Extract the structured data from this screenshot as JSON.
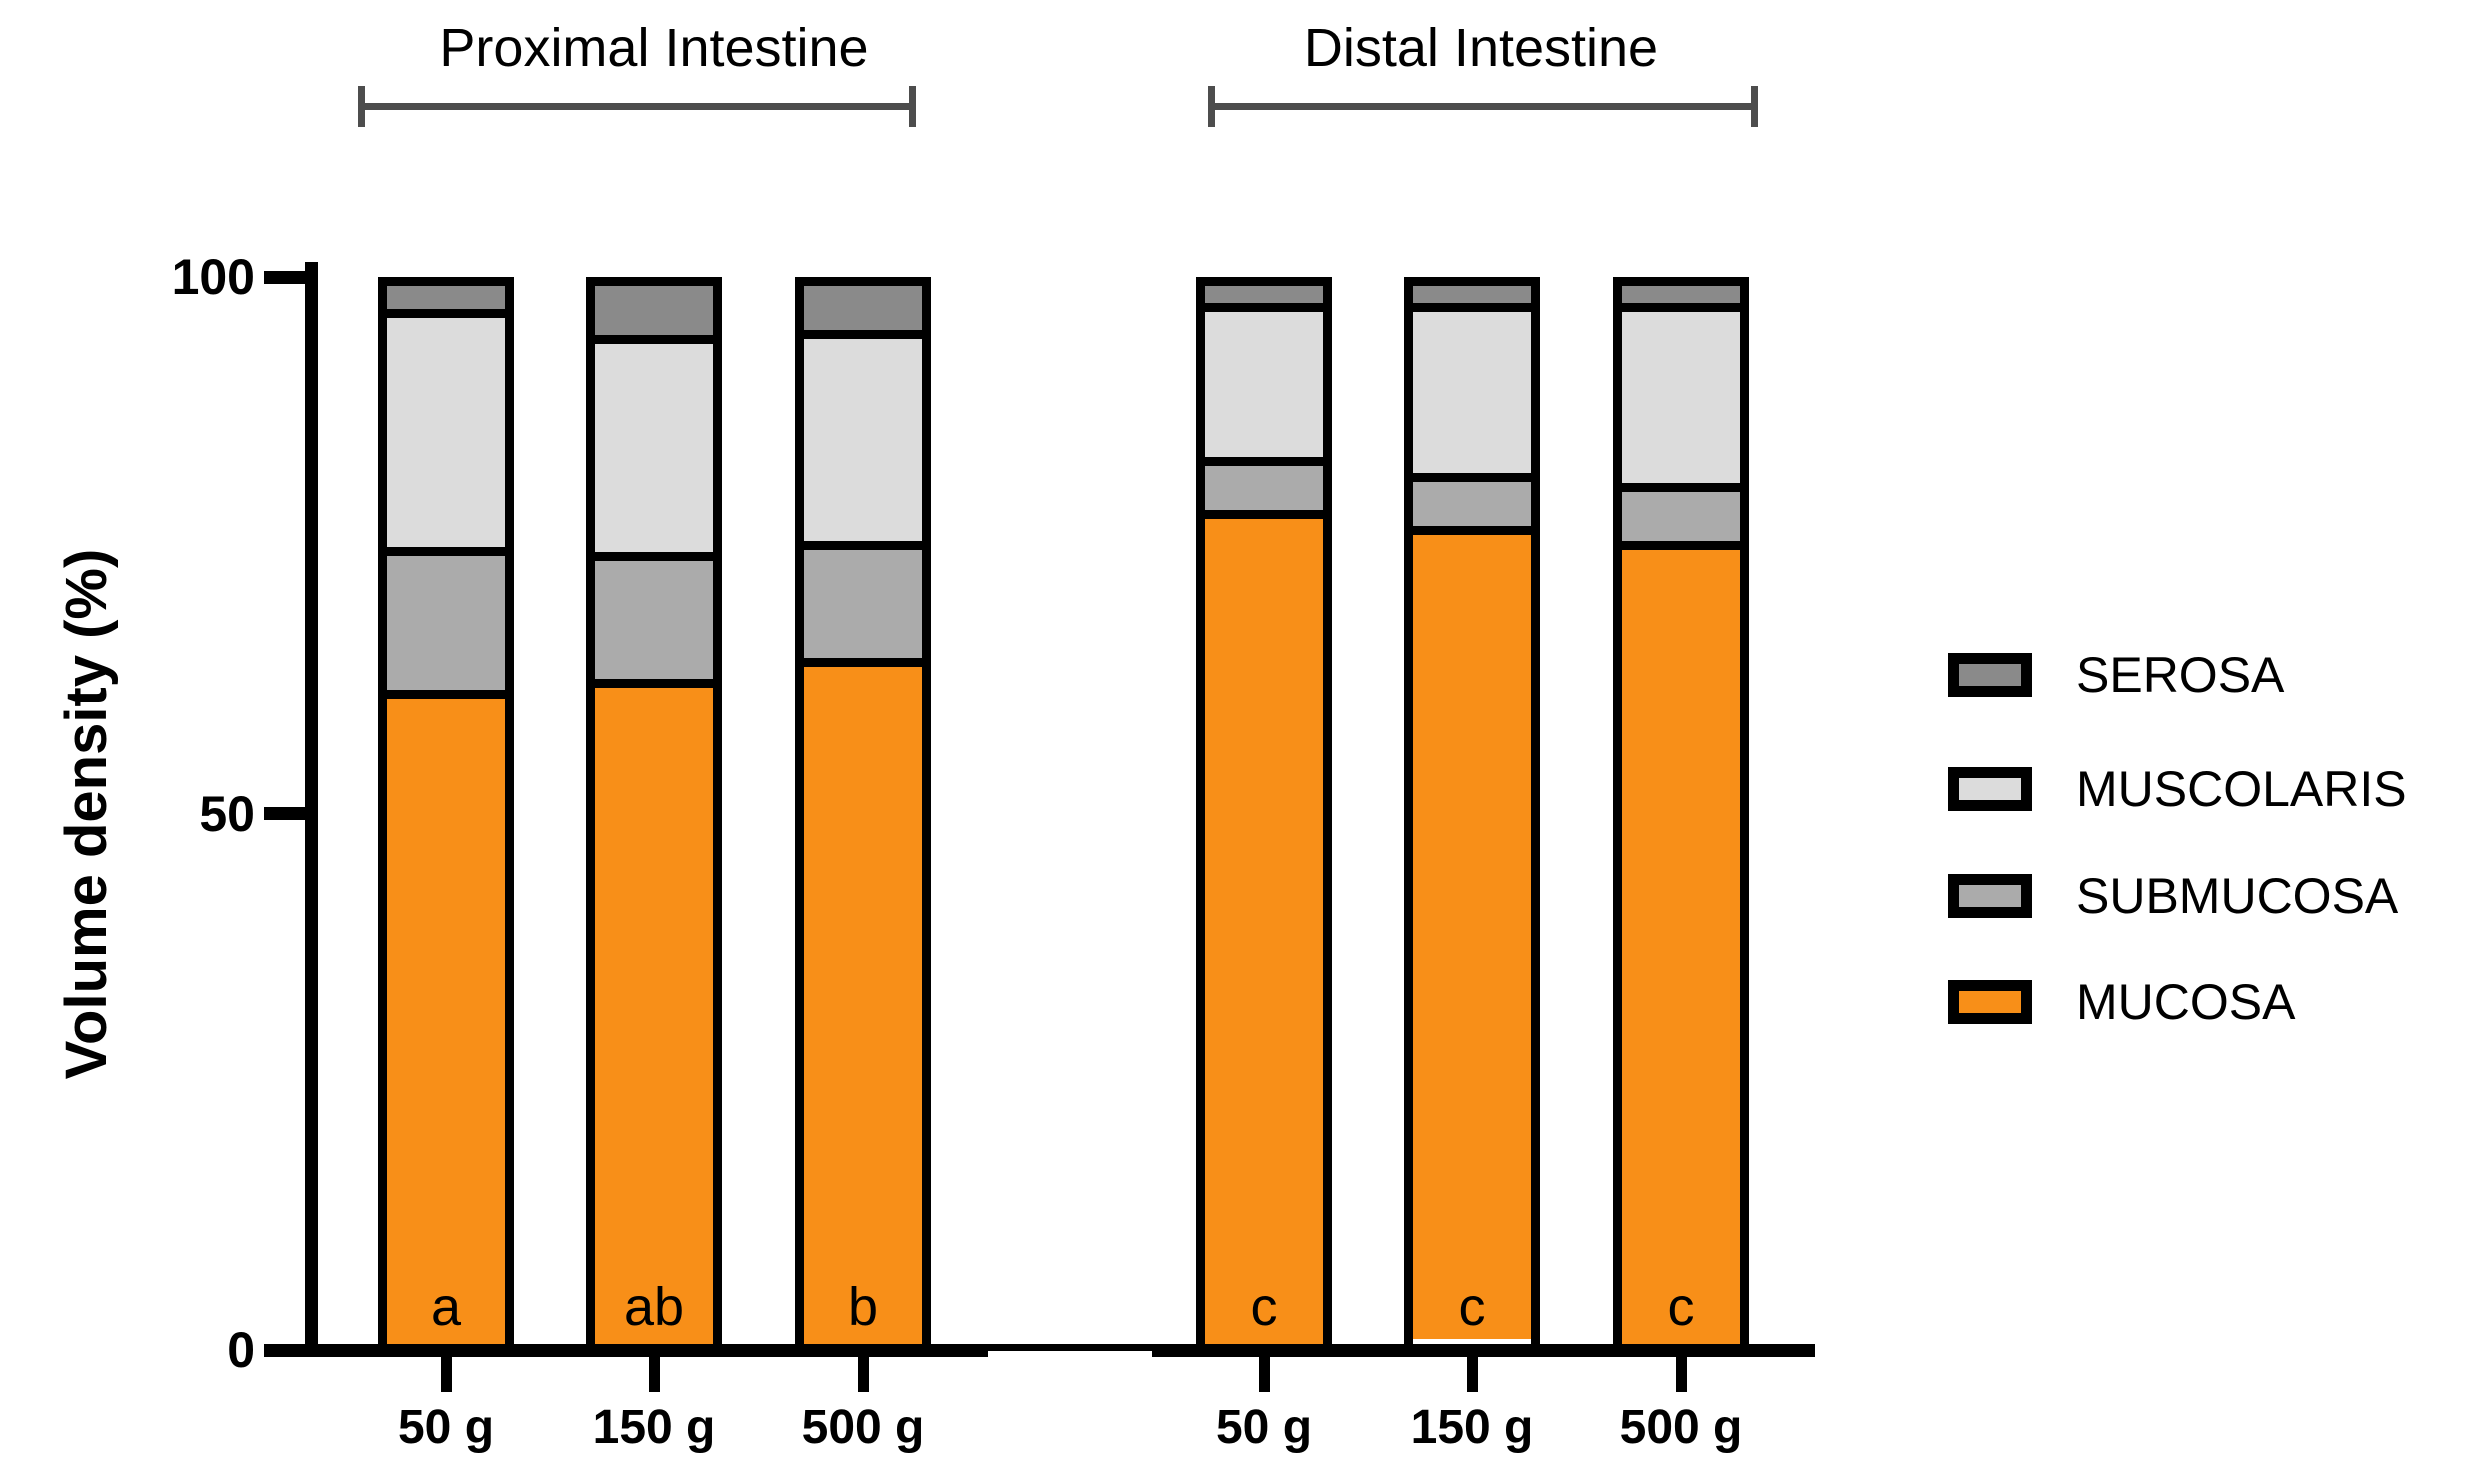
{
  "figure_title": "",
  "group_headers": {
    "proximal": "Proximal Intestine",
    "distal": "Distal Intestine"
  },
  "y_axis": {
    "title": "Volume density (%)"
  },
  "chart_data": {
    "type": "bar",
    "stacked": true,
    "grid": false,
    "groups": [
      "Proximal Intestine",
      "Distal Intestine"
    ],
    "categories": [
      "50 g",
      "150 g",
      "500 g",
      "50 g",
      "150 g",
      "500 g"
    ],
    "category_group_index": [
      0,
      0,
      0,
      1,
      1,
      1
    ],
    "series": [
      {
        "name": "MUCOSA",
        "color": "#F88F18",
        "values": [
          61,
          62,
          64,
          78,
          76,
          75
        ]
      },
      {
        "name": "SUBMUCOSA",
        "color": "#ABABAB",
        "values": [
          13.5,
          12,
          11,
          5,
          5,
          5.5
        ]
      },
      {
        "name": "MUSCOLARIS",
        "color": "#DCDCDC",
        "values": [
          22.5,
          20.5,
          20,
          14.5,
          16,
          17
        ]
      },
      {
        "name": "SEROSA",
        "color": "#8A8A8A",
        "values": [
          3,
          5.5,
          5,
          2.5,
          2.5,
          2.5
        ]
      }
    ],
    "significance_letters": [
      "a",
      "ab",
      "b",
      "c",
      "c",
      "c"
    ],
    "ylabel": "Volume density (%)",
    "ylim": [
      0,
      100
    ],
    "yticks": [
      100,
      50,
      0
    ],
    "legend_position": "right",
    "legend_order": [
      "SEROSA",
      "MUSCOLARIS",
      "SUBMUCOSA",
      "MUCOSA"
    ],
    "bar_outline_color": "#000000",
    "axis_color": "#000000"
  }
}
